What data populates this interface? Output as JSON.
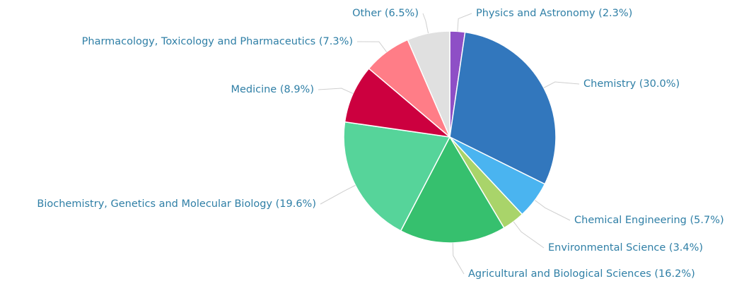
{
  "chart_data": {
    "type": "pie",
    "categories": [
      "Physics and Astronomy (2.3%)",
      "Chemistry (30.0%)",
      "Chemical Engineering (5.7%)",
      "Environmental Science (3.4%)",
      "Agricultural and Biological Sciences (16.2%)",
      "Biochemistry, Genetics and Molecular Biology (19.6%)",
      "Medicine (8.9%)",
      "Pharmacology, Toxicology and Pharmaceutics (7.3%)",
      "Other (6.5%)"
    ],
    "values": [
      2.3,
      30.0,
      5.7,
      3.4,
      16.2,
      19.6,
      8.9,
      7.3,
      6.5
    ],
    "colors": [
      "#8e4fc6",
      "#3277bd",
      "#4ab4f0",
      "#a9d46a",
      "#36c06e",
      "#56d49a",
      "#cc003f",
      "#ff7d87",
      "#e0e0e0"
    ]
  }
}
